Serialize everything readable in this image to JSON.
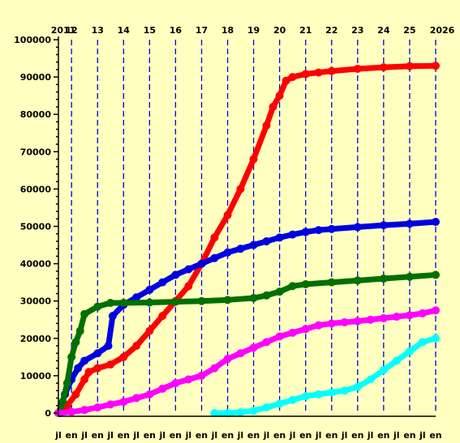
{
  "chart_data": {
    "type": "line",
    "title": "",
    "xlabel": "",
    "ylabel": "",
    "ylim": [
      0,
      100000
    ],
    "xlim": [
      "2011-07-01",
      "2026-01-01"
    ],
    "grid": "vertical-dashed",
    "yticks": [
      {
        "value": 0,
        "label": "0"
      },
      {
        "value": 10000,
        "label": "10000"
      },
      {
        "value": 20000,
        "label": "20000"
      },
      {
        "value": 30000,
        "label": "30000"
      },
      {
        "value": 40000,
        "label": "40000"
      },
      {
        "value": 50000,
        "label": "50000"
      },
      {
        "value": 60000,
        "label": "60000"
      },
      {
        "value": 70000,
        "label": "70000"
      },
      {
        "value": 80000,
        "label": "80000"
      },
      {
        "value": 90000,
        "label": "90000"
      },
      {
        "value": 100000,
        "label": "100000"
      }
    ],
    "year_labels": [
      {
        "date": "2011-07-01",
        "label": "2011"
      },
      {
        "date": "2012-01-01",
        "label": "12"
      },
      {
        "date": "2013-01-01",
        "label": "13"
      },
      {
        "date": "2014-01-01",
        "label": "14"
      },
      {
        "date": "2015-01-01",
        "label": "15"
      },
      {
        "date": "2016-01-01",
        "label": "16"
      },
      {
        "date": "2017-01-01",
        "label": "17"
      },
      {
        "date": "2018-01-01",
        "label": "18"
      },
      {
        "date": "2019-01-01",
        "label": "19"
      },
      {
        "date": "2020-01-01",
        "label": "20"
      },
      {
        "date": "2021-01-01",
        "label": "21"
      },
      {
        "date": "2022-01-01",
        "label": "22"
      },
      {
        "date": "2023-01-01",
        "label": "23"
      },
      {
        "date": "2024-01-01",
        "label": "24"
      },
      {
        "date": "2025-01-01",
        "label": "25"
      },
      {
        "date": "2026-01-01",
        "label": "2026"
      }
    ],
    "month_labels": [
      {
        "date": "2011-07-01",
        "label": "jl"
      },
      {
        "date": "2012-01-01",
        "label": "en"
      },
      {
        "date": "2012-07-01",
        "label": "jl"
      },
      {
        "date": "2013-01-01",
        "label": "en"
      },
      {
        "date": "2013-07-01",
        "label": "jl"
      },
      {
        "date": "2014-01-01",
        "label": "en"
      },
      {
        "date": "2014-07-01",
        "label": "jl"
      },
      {
        "date": "2015-01-01",
        "label": "en"
      },
      {
        "date": "2015-07-01",
        "label": "jl"
      },
      {
        "date": "2016-01-01",
        "label": "en"
      },
      {
        "date": "2016-07-01",
        "label": "jl"
      },
      {
        "date": "2017-01-01",
        "label": "en"
      },
      {
        "date": "2017-07-01",
        "label": "jl"
      },
      {
        "date": "2018-01-01",
        "label": "en"
      },
      {
        "date": "2018-07-01",
        "label": "jl"
      },
      {
        "date": "2019-01-01",
        "label": "en"
      },
      {
        "date": "2019-07-01",
        "label": "jl"
      },
      {
        "date": "2020-01-01",
        "label": "en"
      },
      {
        "date": "2020-07-01",
        "label": "jl"
      },
      {
        "date": "2021-01-01",
        "label": "en"
      },
      {
        "date": "2021-07-01",
        "label": "jl"
      },
      {
        "date": "2022-01-01",
        "label": "en"
      },
      {
        "date": "2022-07-01",
        "label": "jl"
      },
      {
        "date": "2023-01-01",
        "label": "en"
      },
      {
        "date": "2023-07-01",
        "label": "jl"
      },
      {
        "date": "2024-01-01",
        "label": "en"
      },
      {
        "date": "2024-07-01",
        "label": "jl"
      },
      {
        "date": "2025-01-01",
        "label": "en"
      },
      {
        "date": "2025-07-01",
        "label": "jl"
      },
      {
        "date": "2026-01-01",
        "label": "en"
      }
    ],
    "grid_dates": [
      "2012-01-01",
      "2013-01-01",
      "2014-01-01",
      "2015-01-01",
      "2016-01-01",
      "2017-01-01",
      "2018-01-01",
      "2019-01-01",
      "2020-01-01",
      "2021-01-01",
      "2022-01-01",
      "2023-01-01",
      "2024-01-01",
      "2025-01-01",
      "2026-01-01"
    ],
    "series": [
      {
        "color": "#ff0000",
        "x": [
          "2011-08-01",
          "2011-11-01",
          "2012-03-01",
          "2012-07-01",
          "2012-09-01",
          "2013-01-01",
          "2013-07-01",
          "2014-01-01",
          "2014-07-01",
          "2015-01-01",
          "2015-07-01",
          "2016-01-01",
          "2016-07-01",
          "2017-01-01",
          "2017-07-01",
          "2018-01-01",
          "2018-07-01",
          "2019-01-01",
          "2019-07-01",
          "2019-10-01",
          "2020-01-01",
          "2020-04-01",
          "2020-07-01",
          "2021-01-01",
          "2021-07-01",
          "2022-01-01",
          "2023-01-01",
          "2024-01-01",
          "2025-01-01",
          "2026-01-01"
        ],
        "values": [
          0,
          2000,
          5000,
          9000,
          11000,
          12000,
          13000,
          15000,
          18000,
          22000,
          26000,
          30000,
          34000,
          40000,
          47000,
          53000,
          60000,
          68000,
          77000,
          82000,
          85000,
          89000,
          90000,
          90800,
          91200,
          91600,
          92200,
          92600,
          92900,
          93000
        ]
      },
      {
        "color": "#0000e0",
        "x": [
          "2011-07-01",
          "2011-10-01",
          "2012-01-01",
          "2012-04-01",
          "2012-07-01",
          "2013-01-01",
          "2013-06-01",
          "2013-08-01",
          "2014-01-01",
          "2014-07-01",
          "2015-01-01",
          "2015-07-01",
          "2016-01-01",
          "2016-07-01",
          "2017-01-01",
          "2017-07-01",
          "2018-01-01",
          "2018-07-01",
          "2019-01-01",
          "2019-07-01",
          "2020-01-01",
          "2020-07-01",
          "2021-01-01",
          "2021-07-01",
          "2022-01-01",
          "2023-01-01",
          "2024-01-01",
          "2025-01-01",
          "2026-01-01"
        ],
        "values": [
          0,
          5000,
          9000,
          12000,
          14000,
          16000,
          18000,
          26000,
          29000,
          31000,
          33000,
          35000,
          37000,
          38500,
          40000,
          41500,
          43000,
          44000,
          45000,
          46000,
          47000,
          47800,
          48500,
          49000,
          49300,
          49800,
          50300,
          50700,
          51200
        ]
      },
      {
        "color": "#007000",
        "x": [
          "2011-07-01",
          "2011-09-01",
          "2011-11-01",
          "2012-01-01",
          "2012-03-01",
          "2012-05-01",
          "2012-07-01",
          "2013-01-01",
          "2013-07-01",
          "2014-01-01",
          "2015-01-01",
          "2016-01-01",
          "2017-01-01",
          "2018-01-01",
          "2019-01-01",
          "2019-07-01",
          "2020-01-01",
          "2020-07-01",
          "2021-01-01",
          "2022-01-01",
          "2023-01-01",
          "2024-01-01",
          "2025-01-01",
          "2026-01-01"
        ],
        "values": [
          0,
          3000,
          8000,
          15000,
          19000,
          22000,
          26500,
          28500,
          29500,
          29500,
          29600,
          29800,
          30000,
          30300,
          30800,
          31500,
          32500,
          34000,
          34500,
          35000,
          35500,
          36000,
          36500,
          37000
        ]
      },
      {
        "color": "#ff00ff",
        "x": [
          "2011-07-01",
          "2012-01-01",
          "2012-07-01",
          "2013-01-01",
          "2013-07-01",
          "2014-01-01",
          "2014-07-01",
          "2015-01-01",
          "2015-07-01",
          "2016-01-01",
          "2016-07-01",
          "2017-01-01",
          "2017-07-01",
          "2018-01-01",
          "2018-07-01",
          "2019-01-01",
          "2019-07-01",
          "2020-01-01",
          "2020-07-01",
          "2021-01-01",
          "2021-07-01",
          "2022-01-01",
          "2022-07-01",
          "2023-01-01",
          "2023-07-01",
          "2024-01-01",
          "2024-07-01",
          "2025-01-01",
          "2025-07-01",
          "2026-01-01"
        ],
        "values": [
          0,
          300,
          800,
          1500,
          2300,
          3000,
          4000,
          5000,
          6500,
          8000,
          9000,
          10000,
          12000,
          14500,
          16000,
          17500,
          19000,
          20500,
          21500,
          22500,
          23500,
          24000,
          24300,
          24600,
          25000,
          25400,
          25800,
          26200,
          26700,
          27500
        ]
      },
      {
        "color": "#00ffff",
        "x": [
          "2017-07-01",
          "2018-01-01",
          "2018-07-01",
          "2019-01-01",
          "2019-07-01",
          "2020-01-01",
          "2020-07-01",
          "2021-01-01",
          "2021-07-01",
          "2022-01-01",
          "2022-07-01",
          "2023-01-01",
          "2023-07-01",
          "2024-01-01",
          "2024-07-01",
          "2025-01-01",
          "2025-07-01",
          "2026-01-01"
        ],
        "values": [
          0,
          0,
          200,
          600,
          1500,
          2500,
          3500,
          4500,
          5000,
          5500,
          6000,
          7000,
          9000,
          11500,
          14000,
          16500,
          19000,
          20000
        ]
      }
    ]
  }
}
